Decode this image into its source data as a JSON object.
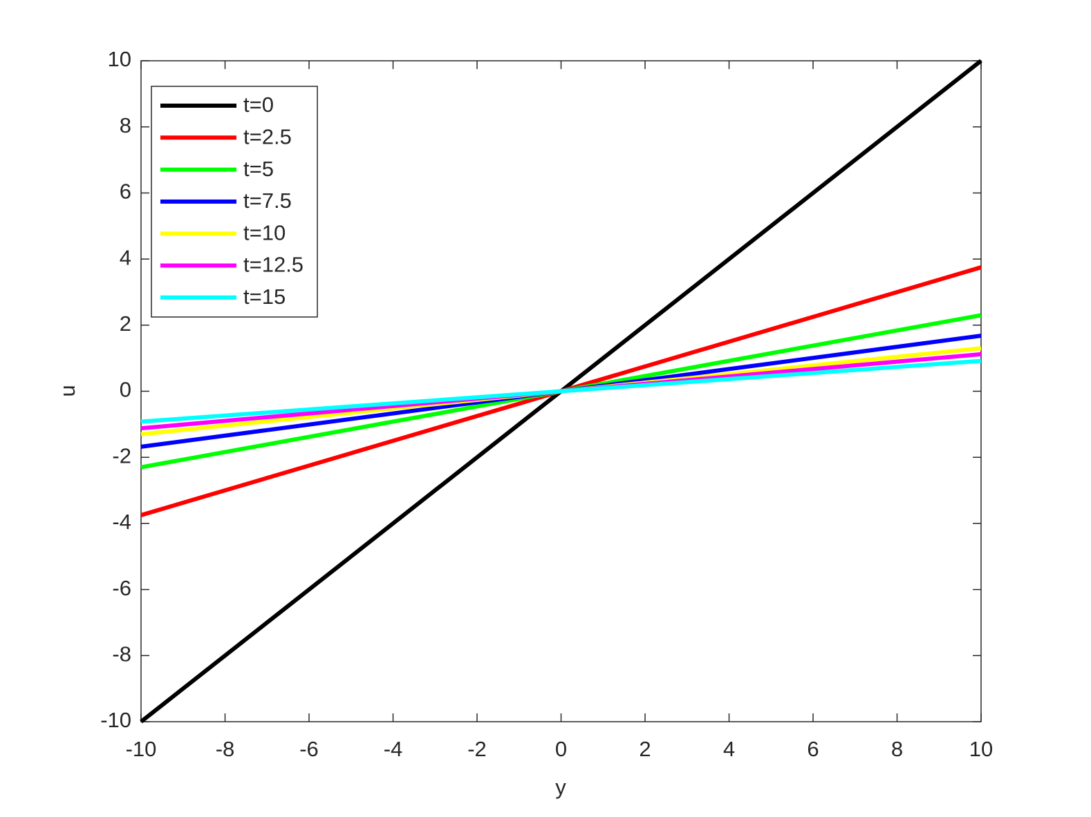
{
  "chart_data": {
    "type": "line",
    "xlabel": "y",
    "ylabel": "u",
    "x": [
      -10,
      0,
      10
    ],
    "series": [
      {
        "name": "t=0",
        "color": "#000000",
        "values": [
          -10,
          0,
          10
        ]
      },
      {
        "name": "t=2.5",
        "color": "#ff0000",
        "values": [
          -3.75,
          0,
          3.75
        ]
      },
      {
        "name": "t=5",
        "color": "#00ff00",
        "values": [
          -2.3,
          0,
          2.3
        ]
      },
      {
        "name": "t=7.5",
        "color": "#0000ff",
        "values": [
          -1.68,
          0,
          1.68
        ]
      },
      {
        "name": "t=10",
        "color": "#ffff00",
        "values": [
          -1.3,
          0,
          1.3
        ]
      },
      {
        "name": "t=12.5",
        "color": "#ff00ff",
        "values": [
          -1.12,
          0,
          1.12
        ]
      },
      {
        "name": "t=15",
        "color": "#00ffff",
        "values": [
          -0.92,
          0,
          0.92
        ]
      }
    ],
    "xlim": [
      -10,
      10
    ],
    "xticks": [
      -10,
      -8,
      -6,
      -4,
      -2,
      0,
      2,
      4,
      6,
      8,
      10
    ],
    "ylim": [
      -10,
      10
    ],
    "yticks": [
      -10,
      -8,
      -6,
      -4,
      -2,
      0,
      2,
      4,
      6,
      8,
      10
    ],
    "grid": false,
    "legend": "northwest"
  }
}
